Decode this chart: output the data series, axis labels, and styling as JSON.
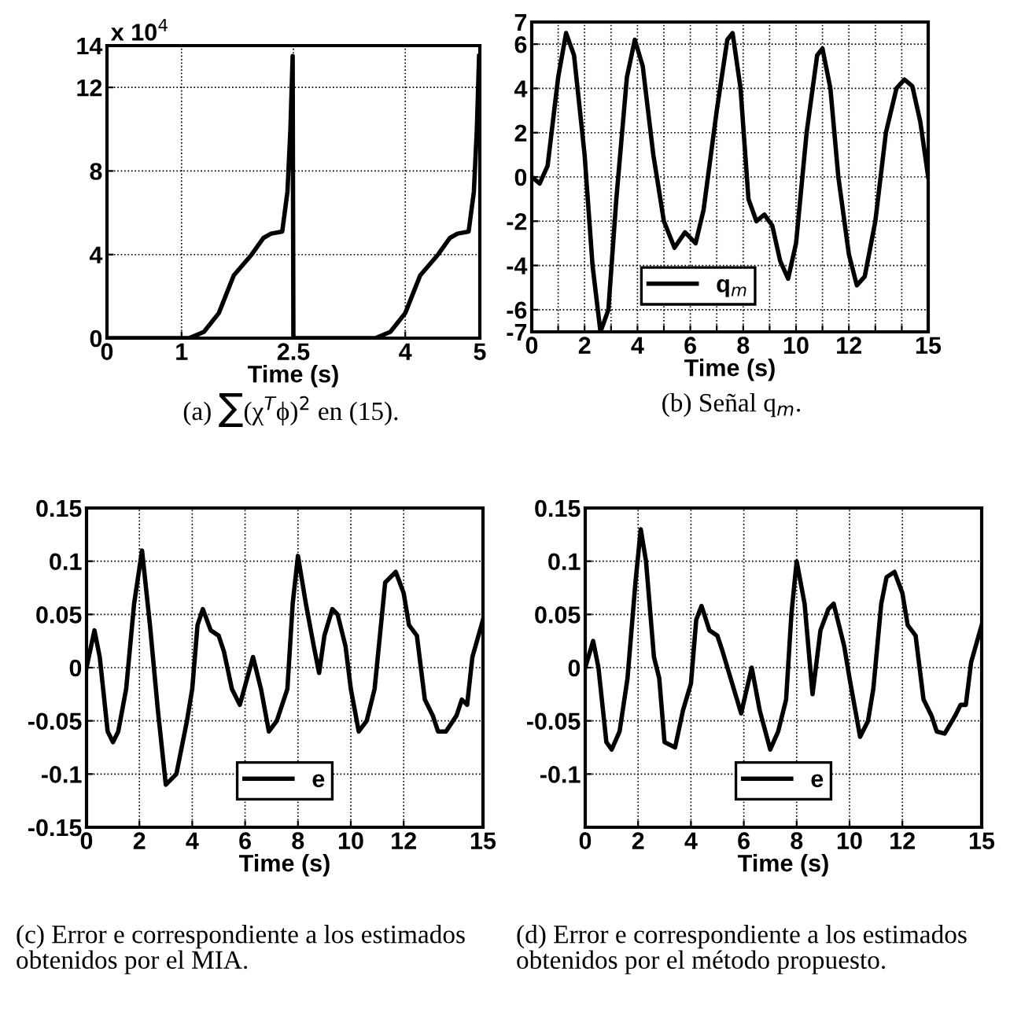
{
  "chart_data": [
    {
      "type": "line",
      "title": "(a) ∑(χ$^{T}$ϕ)$^{2}$ en (15).",
      "xlabel": "Time (s)",
      "annotations": [
        "x 10$^{4}$"
      ],
      "xlim": [
        0,
        5
      ],
      "ylim": [
        0,
        14
      ],
      "xticks": [
        0,
        1,
        2.5,
        4,
        5
      ],
      "yticks": [
        0,
        4,
        8,
        12,
        14
      ],
      "grid": true,
      "line_style": "solid",
      "x": [
        0,
        1.1,
        1.3,
        1.5,
        1.7,
        1.94,
        2.1,
        2.2,
        2.35,
        2.42,
        2.46,
        2.49,
        2.5,
        3.6,
        3.8,
        4.0,
        4.2,
        4.44,
        4.6,
        4.7,
        4.85,
        4.92,
        4.96,
        4.99
      ],
      "series": [
        {
          "color": "#000000",
          "values": [
            0,
            0,
            0.3,
            1.2,
            3,
            4,
            4.8,
            5,
            5.1,
            7,
            10,
            13.5,
            0,
            0,
            0.3,
            1.2,
            3,
            4,
            4.8,
            5,
            5.1,
            7,
            10,
            13.5
          ]
        }
      ]
    },
    {
      "type": "line",
      "title": "(b) Señal q$_{m}$.",
      "xlabel": "Time (s)",
      "xlim": [
        0,
        15
      ],
      "ylim": [
        -7,
        7
      ],
      "xticks": [
        0,
        {
          "value": 1,
          "label": null
        },
        2,
        {
          "value": 3,
          "label": null
        },
        4,
        {
          "value": 5,
          "label": null
        },
        6,
        {
          "value": 7,
          "label": null
        },
        8,
        {
          "value": 9,
          "label": null
        },
        10,
        {
          "value": 11,
          "label": null
        },
        12,
        {
          "value": 13,
          "label": null
        },
        {
          "value": 14,
          "label": null
        },
        15
      ],
      "yticks": [
        -7,
        -6,
        -4,
        -2,
        0,
        2,
        4,
        6,
        7
      ],
      "grid": true,
      "legend": "bottom",
      "line_style": "solid",
      "x": [
        0,
        0.3,
        0.6,
        1.0,
        1.3,
        1.6,
        2.0,
        2.3,
        2.6,
        2.9,
        3.2,
        3.6,
        3.9,
        4.2,
        4.6,
        5.0,
        5.4,
        5.8,
        6.2,
        6.5,
        7.0,
        7.4,
        7.6,
        7.9,
        8.2,
        8.5,
        8.8,
        9.1,
        9.4,
        9.7,
        10.0,
        10.4,
        10.8,
        11.0,
        11.3,
        11.6,
        12.0,
        12.3,
        12.6,
        13.0,
        13.4,
        13.8,
        14.1,
        14.4,
        14.7,
        15
      ],
      "series": [
        {
          "name": "q$_{m}$",
          "color": "#000000",
          "values": [
            0,
            -0.3,
            0.5,
            4.5,
            6.5,
            5.5,
            1,
            -4,
            -7,
            -6,
            -1,
            4.5,
            6.2,
            5,
            1,
            -2,
            -3.2,
            -2.5,
            -3,
            -1.5,
            3,
            6.2,
            6.5,
            4,
            -1,
            -2,
            -1.7,
            -2.2,
            -3.8,
            -4.6,
            -3,
            2,
            5.5,
            5.8,
            4,
            0,
            -3.5,
            -4.9,
            -4.5,
            -2,
            2,
            4,
            4.4,
            4.1,
            2.5,
            0
          ]
        }
      ]
    },
    {
      "type": "line",
      "title": "(c) Error e correspondiente a los estimados obtenidos por el MIA.",
      "xlabel": "Time (s)",
      "xlim": [
        0,
        15
      ],
      "ylim": [
        -0.15,
        0.15
      ],
      "xticks": [
        0,
        2,
        4,
        6,
        8,
        10,
        12,
        15
      ],
      "yticks": [
        -0.15,
        -0.1,
        -0.05,
        0,
        0.05,
        0.1,
        0.15
      ],
      "grid": true,
      "legend": "bottom",
      "line_style": "solid",
      "x": [
        0,
        0.3,
        0.5,
        0.8,
        1.0,
        1.2,
        1.5,
        1.8,
        2.1,
        2.4,
        2.7,
        3.0,
        3.4,
        3.8,
        4.0,
        4.2,
        4.4,
        4.7,
        5.0,
        5.2,
        5.5,
        5.8,
        6.3,
        6.6,
        6.9,
        7.2,
        7.6,
        7.8,
        8.0,
        8.3,
        8.6,
        8.8,
        9.0,
        9.3,
        9.5,
        9.8,
        10.0,
        10.3,
        10.6,
        10.9,
        11.1,
        11.3,
        11.7,
        12.0,
        12.2,
        12.5,
        12.8,
        13.1,
        13.3,
        13.6,
        14.0,
        14.2,
        14.4,
        14.6,
        15
      ],
      "series": [
        {
          "name": "e",
          "color": "#000000",
          "values": [
            0,
            0.035,
            0.01,
            -0.06,
            -0.07,
            -0.06,
            -0.02,
            0.06,
            0.11,
            0.04,
            -0.04,
            -0.11,
            -0.1,
            -0.05,
            -0.02,
            0.04,
            0.055,
            0.035,
            0.03,
            0.015,
            -0.02,
            -0.035,
            0.01,
            -0.02,
            -0.06,
            -0.05,
            -0.02,
            0.06,
            0.105,
            0.06,
            0.02,
            -0.005,
            0.03,
            0.055,
            0.05,
            0.02,
            -0.02,
            -0.06,
            -0.05,
            -0.02,
            0.03,
            0.08,
            0.09,
            0.07,
            0.04,
            0.03,
            -0.03,
            -0.045,
            -0.06,
            -0.06,
            -0.045,
            -0.03,
            -0.035,
            0.01,
            0.045
          ]
        }
      ]
    },
    {
      "type": "line",
      "title": "(d) Error e correspondiente a los estimados obtenidos por el método propuesto.",
      "xlabel": "Time (s)",
      "xlim": [
        0,
        15
      ],
      "ylim": [
        -0.15,
        0.15
      ],
      "xticks": [
        0,
        2,
        4,
        6,
        8,
        10,
        12,
        15
      ],
      "yticks": [
        {
          "value": -0.15,
          "label": null
        },
        -0.1,
        -0.05,
        0,
        0.05,
        0.1,
        0.15
      ],
      "grid": true,
      "legend": "bottom",
      "line_style": "solid",
      "x": [
        0,
        0.3,
        0.5,
        0.8,
        1.0,
        1.3,
        1.6,
        1.9,
        2.1,
        2.3,
        2.6,
        2.8,
        3.0,
        3.4,
        3.7,
        4.0,
        4.2,
        4.4,
        4.7,
        5.0,
        5.2,
        5.5,
        5.9,
        6.3,
        6.6,
        7.0,
        7.3,
        7.6,
        7.8,
        8.0,
        8.3,
        8.6,
        8.9,
        9.2,
        9.4,
        9.8,
        10.0,
        10.4,
        10.7,
        10.9,
        11.2,
        11.4,
        11.7,
        12.0,
        12.2,
        12.5,
        12.8,
        13.1,
        13.3,
        13.6,
        14.0,
        14.2,
        14.4,
        14.6,
        15
      ],
      "series": [
        {
          "name": "e",
          "color": "#000000",
          "values": [
            0,
            0.025,
            0.0,
            -0.07,
            -0.077,
            -0.06,
            -0.01,
            0.08,
            0.13,
            0.1,
            0.01,
            -0.01,
            -0.07,
            -0.075,
            -0.04,
            -0.015,
            0.045,
            0.058,
            0.035,
            0.03,
            0.015,
            -0.01,
            -0.043,
            0.0,
            -0.04,
            -0.077,
            -0.06,
            -0.03,
            0.05,
            0.1,
            0.06,
            -0.025,
            0.035,
            0.055,
            0.06,
            0.02,
            -0.01,
            -0.065,
            -0.05,
            -0.02,
            0.06,
            0.085,
            0.09,
            0.07,
            0.04,
            0.03,
            -0.03,
            -0.045,
            -0.06,
            -0.062,
            -0.045,
            -0.035,
            -0.035,
            0.005,
            0.04
          ]
        }
      ]
    }
  ]
}
